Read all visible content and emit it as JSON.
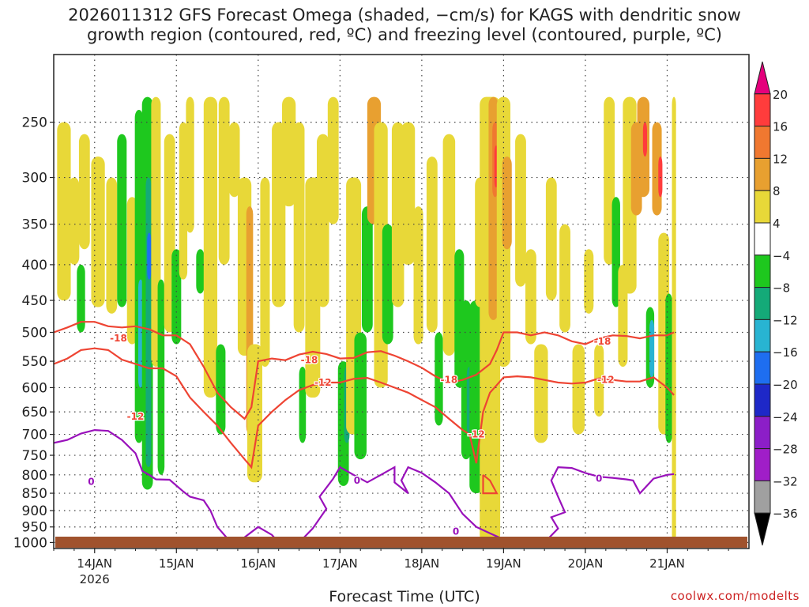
{
  "chart_data": {
    "type": "heatmap",
    "title_line1": "2026011312 GFS Forecast Omega (shaded, −cm/s) for KAGS with dendritic snow",
    "title_line2": "growth region (contoured, red, ºC) and freezing level (contoured, purple, ºC)",
    "xlabel": "Forecast Time (UTC)",
    "ylabel": "",
    "x_range_hours": [
      -12,
      192
    ],
    "x_ticks": [
      {
        "hour": 0,
        "label": "14JAN",
        "sublabel": "2026"
      },
      {
        "hour": 24,
        "label": "15JAN"
      },
      {
        "hour": 48,
        "label": "16JAN"
      },
      {
        "hour": 72,
        "label": "17JAN"
      },
      {
        "hour": 96,
        "label": "18JAN"
      },
      {
        "hour": 120,
        "label": "19JAN"
      },
      {
        "hour": 144,
        "label": "20JAN"
      },
      {
        "hour": 168,
        "label": "21JAN"
      }
    ],
    "y_range_hpa": [
      1020,
      200
    ],
    "y_ticks": [
      250,
      300,
      350,
      400,
      450,
      500,
      550,
      600,
      650,
      700,
      750,
      800,
      850,
      900,
      950,
      1000
    ],
    "colorbar": {
      "levels": [
        20,
        16,
        12,
        8,
        4,
        -4,
        -8,
        -12,
        -16,
        -20,
        -24,
        -28,
        -32,
        -36
      ],
      "colors": [
        "#e4007c",
        "#ff3c3c",
        "#f07830",
        "#e8a030",
        "#e8d838",
        "#ffffff",
        "#1ec81e",
        "#14aa78",
        "#28b4d2",
        "#1e6ef0",
        "#1e28c8",
        "#8c1ec8",
        "#a01ec8",
        "#a0a0a0",
        "#000000"
      ]
    },
    "shading_units": "-cm/s",
    "red_contours": [
      {
        "label": "-18",
        "points": [
          [
            -12,
            500
          ],
          [
            -8,
            492
          ],
          [
            -4,
            483
          ],
          [
            0,
            483
          ],
          [
            4,
            490
          ],
          [
            8,
            492
          ],
          [
            12,
            490
          ],
          [
            16,
            495
          ],
          [
            20,
            505
          ],
          [
            24,
            505
          ],
          [
            28,
            520
          ],
          [
            32,
            560
          ],
          [
            36,
            610
          ],
          [
            40,
            640
          ],
          [
            44,
            665
          ],
          [
            46,
            640
          ],
          [
            48,
            550
          ],
          [
            52,
            545
          ],
          [
            56,
            548
          ],
          [
            60,
            538
          ],
          [
            64,
            533
          ],
          [
            68,
            537
          ],
          [
            72,
            545
          ],
          [
            76,
            544
          ],
          [
            80,
            534
          ],
          [
            84,
            532
          ],
          [
            88,
            540
          ],
          [
            92,
            550
          ],
          [
            96,
            562
          ],
          [
            100,
            578
          ],
          [
            104,
            590
          ],
          [
            108,
            585
          ],
          [
            112,
            575
          ],
          [
            116,
            555
          ],
          [
            118,
            530
          ],
          [
            120,
            500
          ],
          [
            124,
            500
          ],
          [
            128,
            505
          ],
          [
            132,
            500
          ],
          [
            136,
            505
          ],
          [
            140,
            515
          ],
          [
            144,
            520
          ],
          [
            148,
            510
          ],
          [
            152,
            505
          ],
          [
            156,
            506
          ],
          [
            160,
            510
          ],
          [
            164,
            505
          ],
          [
            168,
            505
          ],
          [
            170,
            500
          ]
        ]
      },
      {
        "label": "-12",
        "points": [
          [
            -12,
            555
          ],
          [
            -8,
            545
          ],
          [
            -4,
            530
          ],
          [
            0,
            527
          ],
          [
            4,
            530
          ],
          [
            8,
            547
          ],
          [
            12,
            555
          ],
          [
            16,
            563
          ],
          [
            20,
            563
          ],
          [
            24,
            578
          ],
          [
            28,
            620
          ],
          [
            32,
            650
          ],
          [
            36,
            680
          ],
          [
            40,
            720
          ],
          [
            44,
            760
          ],
          [
            46,
            780
          ],
          [
            48,
            680
          ],
          [
            52,
            650
          ],
          [
            56,
            625
          ],
          [
            60,
            605
          ],
          [
            64,
            595
          ],
          [
            68,
            590
          ],
          [
            72,
            590
          ],
          [
            76,
            583
          ],
          [
            80,
            581
          ],
          [
            84,
            590
          ],
          [
            88,
            600
          ],
          [
            92,
            610
          ],
          [
            96,
            625
          ],
          [
            100,
            640
          ],
          [
            104,
            665
          ],
          [
            108,
            690
          ],
          [
            110,
            700
          ],
          [
            112,
            770
          ],
          [
            114,
            650
          ],
          [
            116,
            610
          ],
          [
            118,
            595
          ],
          [
            120,
            580
          ],
          [
            124,
            578
          ],
          [
            128,
            580
          ],
          [
            132,
            585
          ],
          [
            136,
            590
          ],
          [
            140,
            592
          ],
          [
            144,
            590
          ],
          [
            148,
            582
          ],
          [
            152,
            585
          ],
          [
            156,
            588
          ],
          [
            160,
            588
          ],
          [
            164,
            580
          ],
          [
            168,
            600
          ],
          [
            170,
            615
          ]
        ]
      },
      {
        "label": "",
        "points": [
          [
            114,
            800
          ],
          [
            116,
            815
          ],
          [
            118,
            850
          ],
          [
            114,
            850
          ],
          [
            114,
            800
          ]
        ]
      }
    ],
    "purple_contours": [
      {
        "label": "0",
        "points": [
          [
            -12,
            720
          ],
          [
            -8,
            713
          ],
          [
            -4,
            698
          ],
          [
            0,
            690
          ],
          [
            4,
            692
          ],
          [
            8,
            713
          ],
          [
            12,
            745
          ],
          [
            14,
            790
          ],
          [
            16,
            800
          ],
          [
            18,
            812
          ],
          [
            22,
            813
          ],
          [
            26,
            845
          ],
          [
            28,
            860
          ],
          [
            32,
            870
          ],
          [
            34,
            900
          ],
          [
            36,
            950
          ],
          [
            40,
            1000
          ]
        ]
      },
      {
        "label": "",
        "points": [
          [
            42,
            1000
          ],
          [
            48,
            950
          ],
          [
            52,
            975
          ],
          [
            54,
            1000
          ]
        ]
      },
      {
        "label": "",
        "points": [
          [
            60,
            1000
          ],
          [
            64,
            955
          ],
          [
            68,
            895
          ],
          [
            66,
            860
          ],
          [
            70,
            810
          ],
          [
            72,
            780
          ],
          [
            74,
            790
          ],
          [
            76,
            800
          ],
          [
            80,
            820
          ],
          [
            84,
            800
          ],
          [
            88,
            780
          ],
          [
            88,
            820
          ],
          [
            92,
            850
          ],
          [
            90,
            815
          ],
          [
            92,
            780
          ],
          [
            96,
            795
          ],
          [
            100,
            820
          ],
          [
            104,
            850
          ],
          [
            108,
            910
          ],
          [
            112,
            950
          ],
          [
            116,
            970
          ],
          [
            120,
            990
          ],
          [
            124,
            1000
          ]
        ]
      },
      {
        "label": "0",
        "points": [
          [
            132,
            1000
          ],
          [
            136,
            955
          ],
          [
            134,
            920
          ],
          [
            138,
            905
          ],
          [
            136,
            860
          ],
          [
            134,
            815
          ],
          [
            136,
            780
          ],
          [
            140,
            782
          ],
          [
            144,
            795
          ],
          [
            148,
            805
          ],
          [
            152,
            808
          ],
          [
            156,
            812
          ],
          [
            158,
            815
          ],
          [
            160,
            850
          ],
          [
            164,
            810
          ],
          [
            168,
            800
          ],
          [
            170,
            798
          ]
        ]
      }
    ],
    "contour_label_text": [
      "-18",
      "-12",
      "-18",
      "-12",
      "-18",
      "-18",
      "-12",
      "-12",
      "0",
      "0",
      "0",
      "0"
    ]
  },
  "colors": {
    "red_contour": "#ee4433",
    "purple_contour": "#9911bb",
    "terrain": "#a0522d",
    "grid": "#444444"
  },
  "watermark": "coolwx.com/modelts"
}
